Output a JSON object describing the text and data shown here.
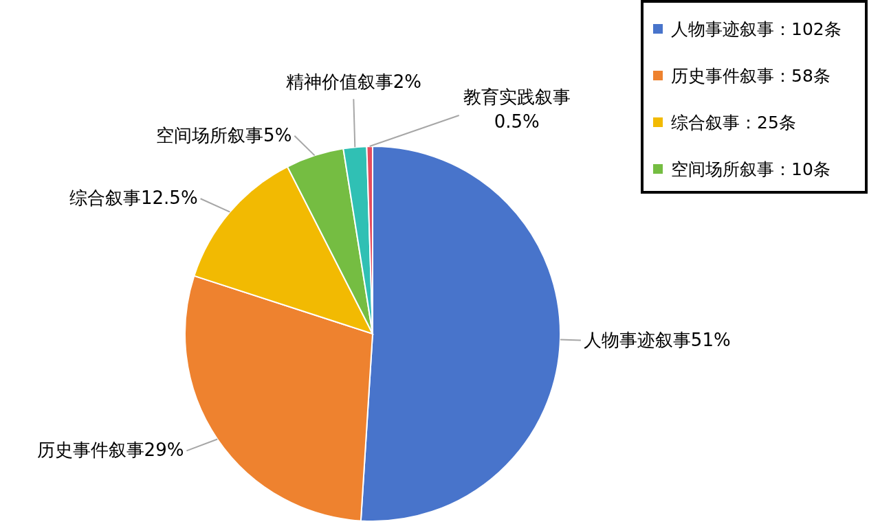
{
  "chart_data": {
    "type": "pie",
    "categories": [
      "人物事迹叙事",
      "历史事件叙事",
      "综合叙事",
      "空间场所叙事",
      "精神价值叙事",
      "教育实践叙事"
    ],
    "values": [
      51,
      29,
      12.5,
      5,
      2,
      0.5
    ],
    "colors": [
      "#4874cb",
      "#ee822f",
      "#f2ba02",
      "#75bd42",
      "#30c0b4",
      "#e54c5e"
    ],
    "value_labels": [
      "51%",
      "29%",
      "12.5%",
      "5%",
      "2%",
      "0.5%"
    ],
    "legend": "top right",
    "annotations": [
      "：102条",
      "：58条",
      "：25条",
      "：10条"
    ]
  }
}
